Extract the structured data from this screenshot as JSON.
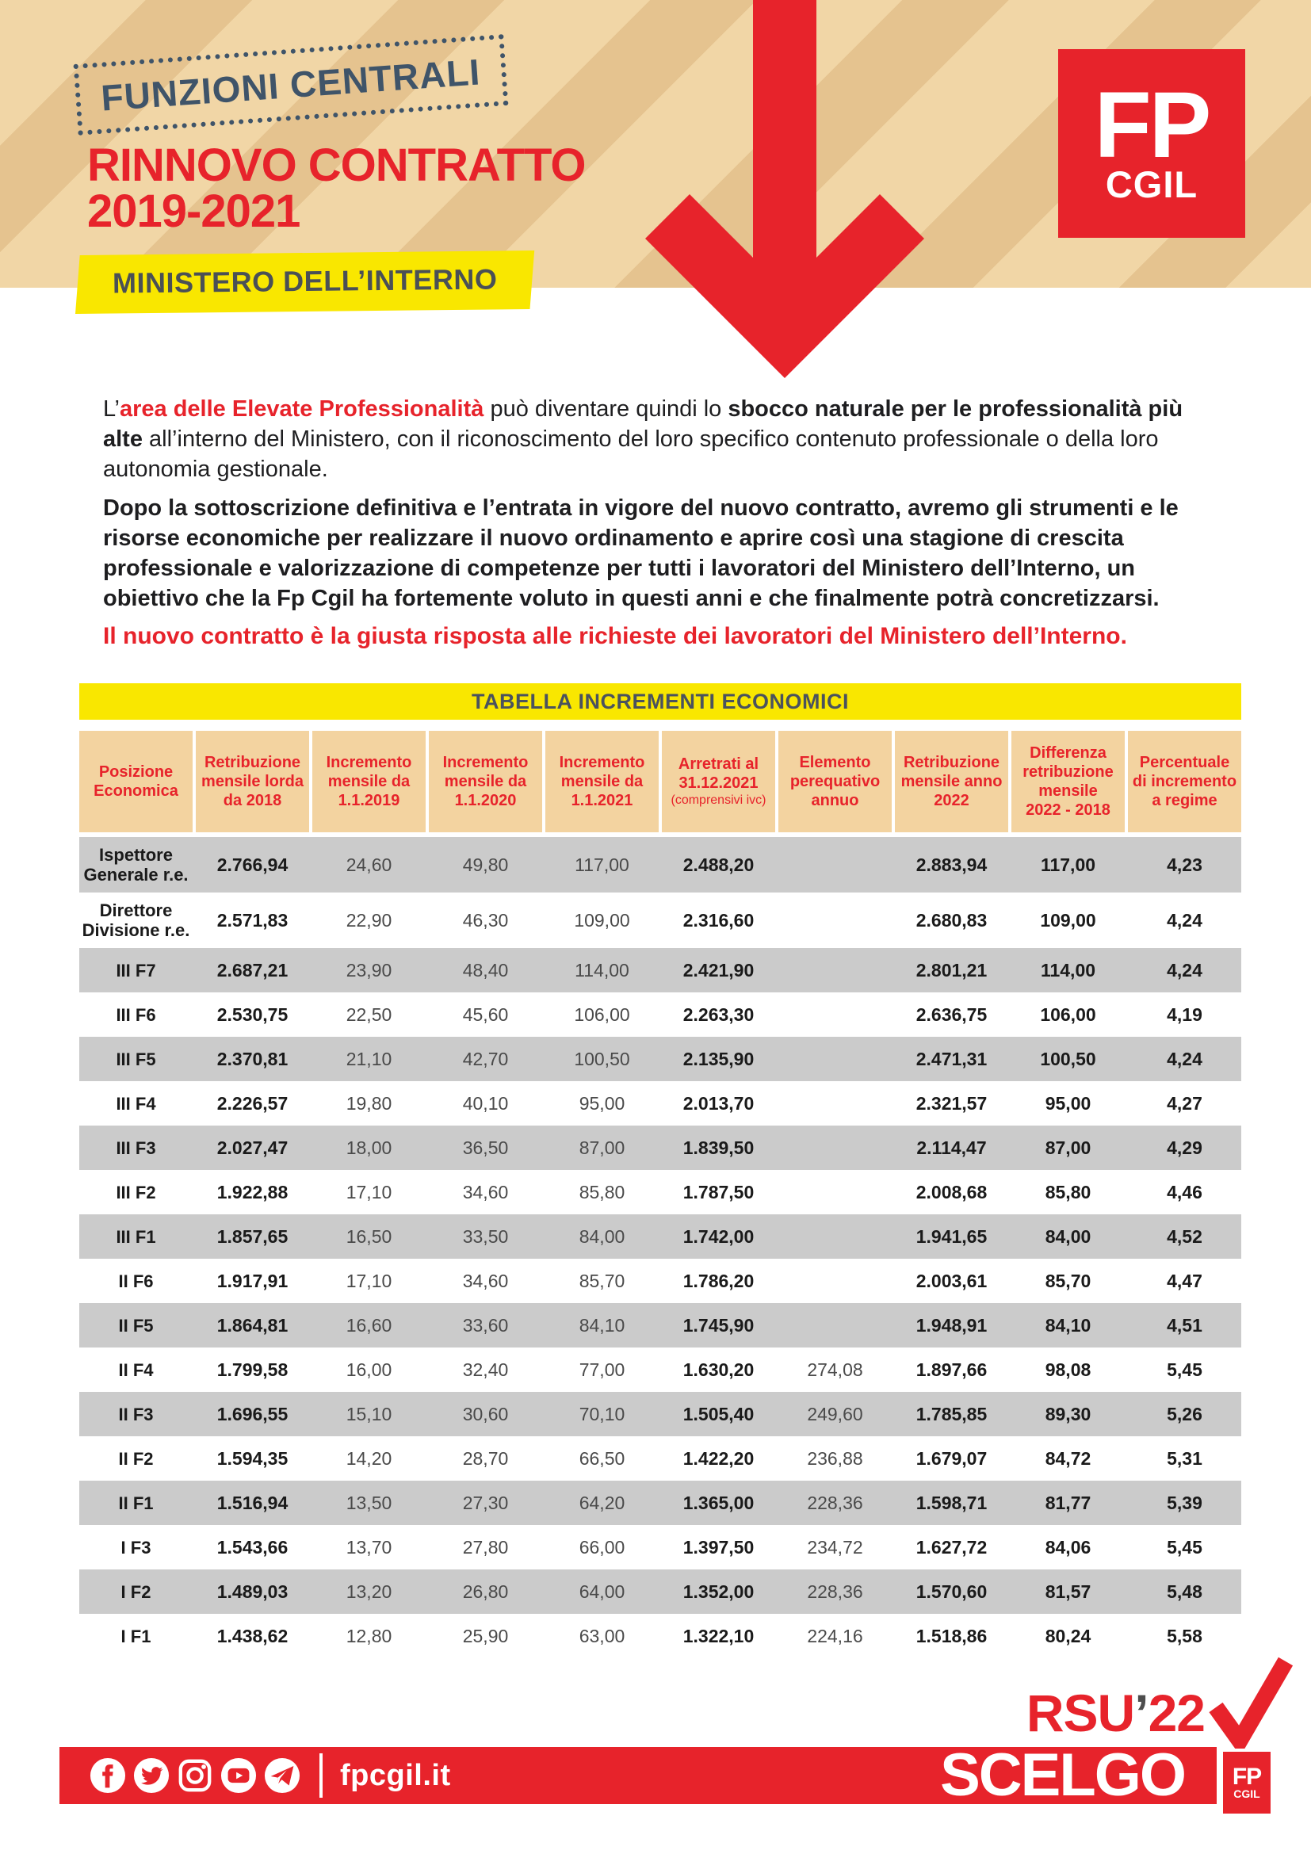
{
  "header": {
    "badge": "FUNZIONI CENTRALI",
    "title": "RINNOVO CONTRATTO\n2019-2021",
    "ministry": "MINISTERO DELL’INTERNO",
    "logo": {
      "top": "FP",
      "bottom": "CGIL"
    }
  },
  "intro": {
    "p1": [
      {
        "t": "L’",
        "s": ""
      },
      {
        "t": "area delle Elevate Professionalità",
        "s": "rb"
      },
      {
        "t": " può diventare quindi lo ",
        "s": ""
      },
      {
        "t": "sbocco naturale per le professionalità più alte",
        "s": "b"
      },
      {
        "t": " all’interno del Ministero, con il riconoscimento del loro specifico contenuto professionale o della loro autonomia gestionale.",
        "s": ""
      }
    ],
    "p2": [
      {
        "t": "Dopo la sottoscrizione definitiva e l’entrata in vigore del nuovo contratto, avremo gli strumenti e le risorse economiche per realizzare il nuovo ordinamento e aprire così una stagione di crescita professionale e valorizzazione di competenze per tutti i lavoratori del Ministero dell’Interno, un obiettivo che la Fp Cgil ha fortemente voluto in questi anni e che finalmente potrà concretizzarsi.",
        "s": ""
      }
    ],
    "p3": [
      {
        "t": "Il nuovo contratto è la giusta risposta alle richieste dei lavoratori del Ministero dell’Interno.",
        "s": "rb"
      }
    ]
  },
  "table": {
    "title": "TABELLA INCREMENTI ECONOMICI",
    "columns": [
      {
        "label": "Posizione\nEconomica"
      },
      {
        "label": "Retribuzione\nmensile lorda\nda 2018"
      },
      {
        "label": "Incremento\nmensile da\n1.1.2019"
      },
      {
        "label": "Incremento\nmensile da\n1.1.2020"
      },
      {
        "label": "Incremento\nmensile da\n1.1.2021"
      },
      {
        "label": "Arretrati al\n31.12.2021",
        "note": "(comprensivi ivc)"
      },
      {
        "label": "Elemento\nperequativo\nannuo"
      },
      {
        "label": "Retribuzione\nmensile anno\n2022"
      },
      {
        "label": "Differenza\nretribuzione\nmensile\n2022 - 2018"
      },
      {
        "label": "Percentuale\ndi incremento\na regime"
      }
    ],
    "bold_value_cols": [
      0,
      4,
      6,
      7,
      8
    ],
    "rows": [
      {
        "label": "Ispettore\nGenerale r.e.",
        "values": [
          "2.766,94",
          "24,60",
          "49,80",
          "117,00",
          "2.488,20",
          "",
          "2.883,94",
          "117,00",
          "4,23"
        ]
      },
      {
        "label": "Direttore\nDivisione r.e.",
        "values": [
          "2.571,83",
          "22,90",
          "46,30",
          "109,00",
          "2.316,60",
          "",
          "2.680,83",
          "109,00",
          "4,24"
        ]
      },
      {
        "label": "III F7",
        "values": [
          "2.687,21",
          "23,90",
          "48,40",
          "114,00",
          "2.421,90",
          "",
          "2.801,21",
          "114,00",
          "4,24"
        ]
      },
      {
        "label": "III F6",
        "values": [
          "2.530,75",
          "22,50",
          "45,60",
          "106,00",
          "2.263,30",
          "",
          "2.636,75",
          "106,00",
          "4,19"
        ]
      },
      {
        "label": "III F5",
        "values": [
          "2.370,81",
          "21,10",
          "42,70",
          "100,50",
          "2.135,90",
          "",
          "2.471,31",
          "100,50",
          "4,24"
        ]
      },
      {
        "label": "III F4",
        "values": [
          "2.226,57",
          "19,80",
          "40,10",
          "95,00",
          "2.013,70",
          "",
          "2.321,57",
          "95,00",
          "4,27"
        ]
      },
      {
        "label": "III F3",
        "values": [
          "2.027,47",
          "18,00",
          "36,50",
          "87,00",
          "1.839,50",
          "",
          "2.114,47",
          "87,00",
          "4,29"
        ]
      },
      {
        "label": "III F2",
        "values": [
          "1.922,88",
          "17,10",
          "34,60",
          "85,80",
          "1.787,50",
          "",
          "2.008,68",
          "85,80",
          "4,46"
        ]
      },
      {
        "label": "III F1",
        "values": [
          "1.857,65",
          "16,50",
          "33,50",
          "84,00",
          "1.742,00",
          "",
          "1.941,65",
          "84,00",
          "4,52"
        ]
      },
      {
        "label": "II F6",
        "values": [
          "1.917,91",
          "17,10",
          "34,60",
          "85,70",
          "1.786,20",
          "",
          "2.003,61",
          "85,70",
          "4,47"
        ]
      },
      {
        "label": "II F5",
        "values": [
          "1.864,81",
          "16,60",
          "33,60",
          "84,10",
          "1.745,90",
          "",
          "1.948,91",
          "84,10",
          "4,51"
        ]
      },
      {
        "label": "II F4",
        "values": [
          "1.799,58",
          "16,00",
          "32,40",
          "77,00",
          "1.630,20",
          "274,08",
          "1.897,66",
          "98,08",
          "5,45"
        ]
      },
      {
        "label": "II F3",
        "values": [
          "1.696,55",
          "15,10",
          "30,60",
          "70,10",
          "1.505,40",
          "249,60",
          "1.785,85",
          "89,30",
          "5,26"
        ]
      },
      {
        "label": "II F2",
        "values": [
          "1.594,35",
          "14,20",
          "28,70",
          "66,50",
          "1.422,20",
          "236,88",
          "1.679,07",
          "84,72",
          "5,31"
        ]
      },
      {
        "label": "II F1",
        "values": [
          "1.516,94",
          "13,50",
          "27,30",
          "64,20",
          "1.365,00",
          "228,36",
          "1.598,71",
          "81,77",
          "5,39"
        ]
      },
      {
        "label": "I F3",
        "values": [
          "1.543,66",
          "13,70",
          "27,80",
          "66,00",
          "1.397,50",
          "234,72",
          "1.627,72",
          "84,06",
          "5,45"
        ]
      },
      {
        "label": "I F2",
        "values": [
          "1.489,03",
          "13,20",
          "26,80",
          "64,00",
          "1.352,00",
          "228,36",
          "1.570,60",
          "81,57",
          "5,48"
        ]
      },
      {
        "label": "I F1",
        "values": [
          "1.438,62",
          "12,80",
          "25,90",
          "63,00",
          "1.322,10",
          "224,16",
          "1.518,86",
          "80,24",
          "5,58"
        ]
      }
    ]
  },
  "footer": {
    "rsu": [
      {
        "t": "RSU",
        "s": "red"
      },
      {
        "t": "’",
        "s": "dark"
      },
      {
        "t": "22",
        "s": "red"
      }
    ],
    "scelgo": "SCELGO",
    "site": "fpcgil.it",
    "badge": {
      "top": "FP",
      "bottom": "CGIL"
    },
    "social_icons": [
      "facebook",
      "twitter",
      "instagram",
      "youtube",
      "telegram"
    ]
  },
  "colors": {
    "red": "#e7232b",
    "tan": "#f1d6a6",
    "tan_stripe": "#e5c38f",
    "yellow": "#f9e700",
    "row_gray": "#cbcbcb",
    "slate_blue": "#3f5469",
    "dark_gray": "#4a5056"
  }
}
